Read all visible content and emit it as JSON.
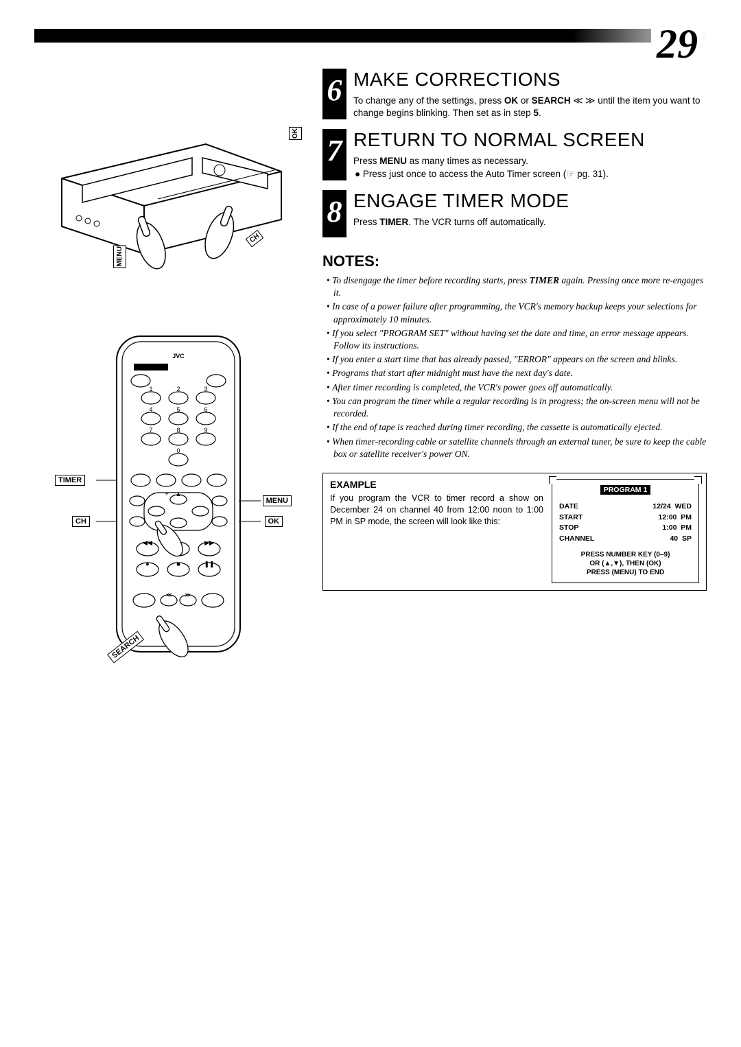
{
  "page_number": "29",
  "vcr_labels": {
    "ok": "OK",
    "menu": "MENU",
    "ch": "CH"
  },
  "remote_labels": {
    "timer": "TIMER",
    "ch": "CH",
    "menu": "MENU",
    "ok": "OK",
    "search": "SEARCH"
  },
  "remote_brand": "JVC",
  "steps": [
    {
      "num": "6",
      "title": "Make Corrections",
      "body_html": "To change any of the settings, press <b>OK</b> or <b>SEARCH</b> ≪ ≫ until the item you want to change begins blinking. Then set as in step <b>5</b>."
    },
    {
      "num": "7",
      "title": "Return To Normal Screen",
      "body_html": "Press <b>MENU</b> as many times as necessary.",
      "bullets": [
        "Press just once to access the Auto Timer screen (☞ pg. 31)."
      ]
    },
    {
      "num": "8",
      "title": "Engage Timer Mode",
      "body_html": "Press <b>TIMER</b>. The VCR turns off automatically."
    }
  ],
  "notes_title": "NOTES:",
  "notes": [
    "To disengage the timer before recording starts, press <b>TIMER</b> again. Pressing once more re-engages it.",
    "In case of a power failure after programming, the VCR's memory backup keeps your selections for approximately 10 minutes.",
    "If you select \"PROGRAM SET\" without having set the date and time, an error message appears. Follow its instructions.",
    "If you enter a start time that has already passed, \"ERROR\" appears on the screen and blinks.",
    "Programs that start after midnight must have the next day's date.",
    "After timer recording is completed, the VCR's power goes off automatically.",
    "You can program the timer while a regular recording is in progress; the on-screen menu will not be recorded.",
    "If the end of tape is reached during timer recording, the cassette is automatically ejected.",
    "When timer-recording cable or satellite channels through an external tuner, be sure to keep the cable box or satellite receiver's power ON."
  ],
  "example": {
    "title": "EXAMPLE",
    "text": "If you program the VCR to timer record a show on December 24 on channel 40 from 12:00 noon to 1:00 PM in SP mode, the screen will look like this:",
    "screen": {
      "badge": "PROGRAM 1",
      "rows": [
        {
          "l": "DATE",
          "r": "12/24  WED"
        },
        {
          "l": "START",
          "r": "12:00  PM"
        },
        {
          "l": "STOP",
          "r": "1:00  PM"
        },
        {
          "l": "CHANNEL",
          "r": "40  SP"
        }
      ],
      "footer": [
        "PRESS NUMBER KEY (0–9)",
        "OR (▲,▼), THEN (OK)",
        "PRESS (MENU) TO END"
      ]
    }
  }
}
